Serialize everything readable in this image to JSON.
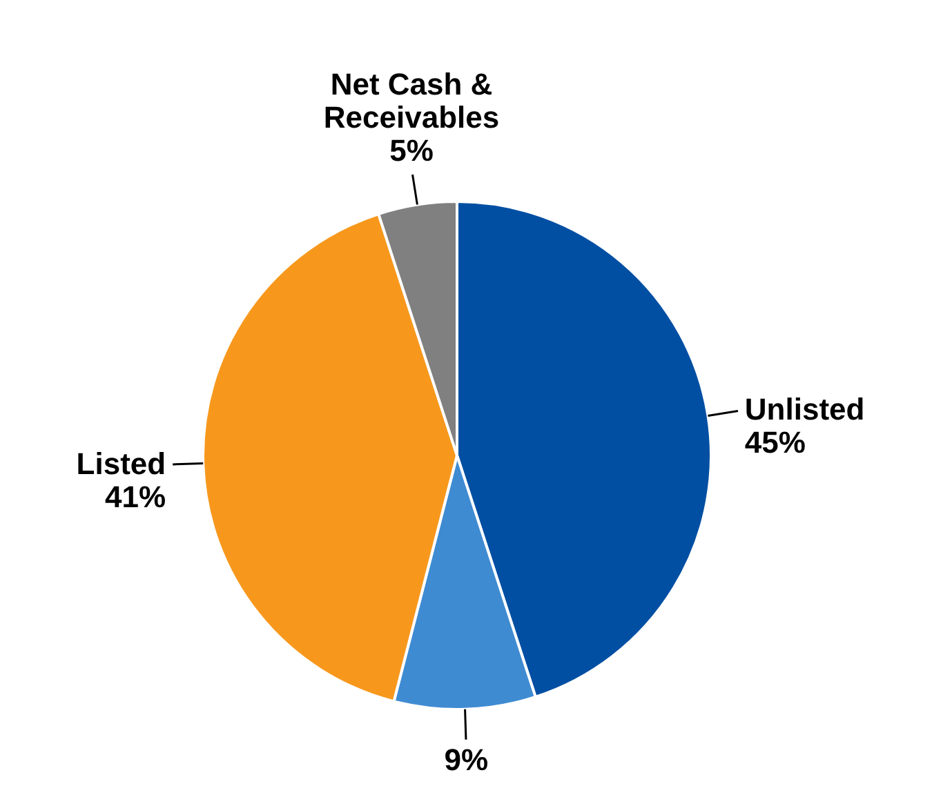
{
  "chart_data": {
    "type": "pie",
    "categories": [
      "Unlisted",
      null,
      "Listed",
      "Net Cash &\nReceivables"
    ],
    "values": [
      45,
      9,
      41,
      5
    ],
    "colors": [
      "#004fa3",
      "#3f8bd2",
      "#f7981d",
      "#808080"
    ],
    "value_labels": [
      "45%",
      "9%",
      "41%",
      "5%"
    ]
  }
}
